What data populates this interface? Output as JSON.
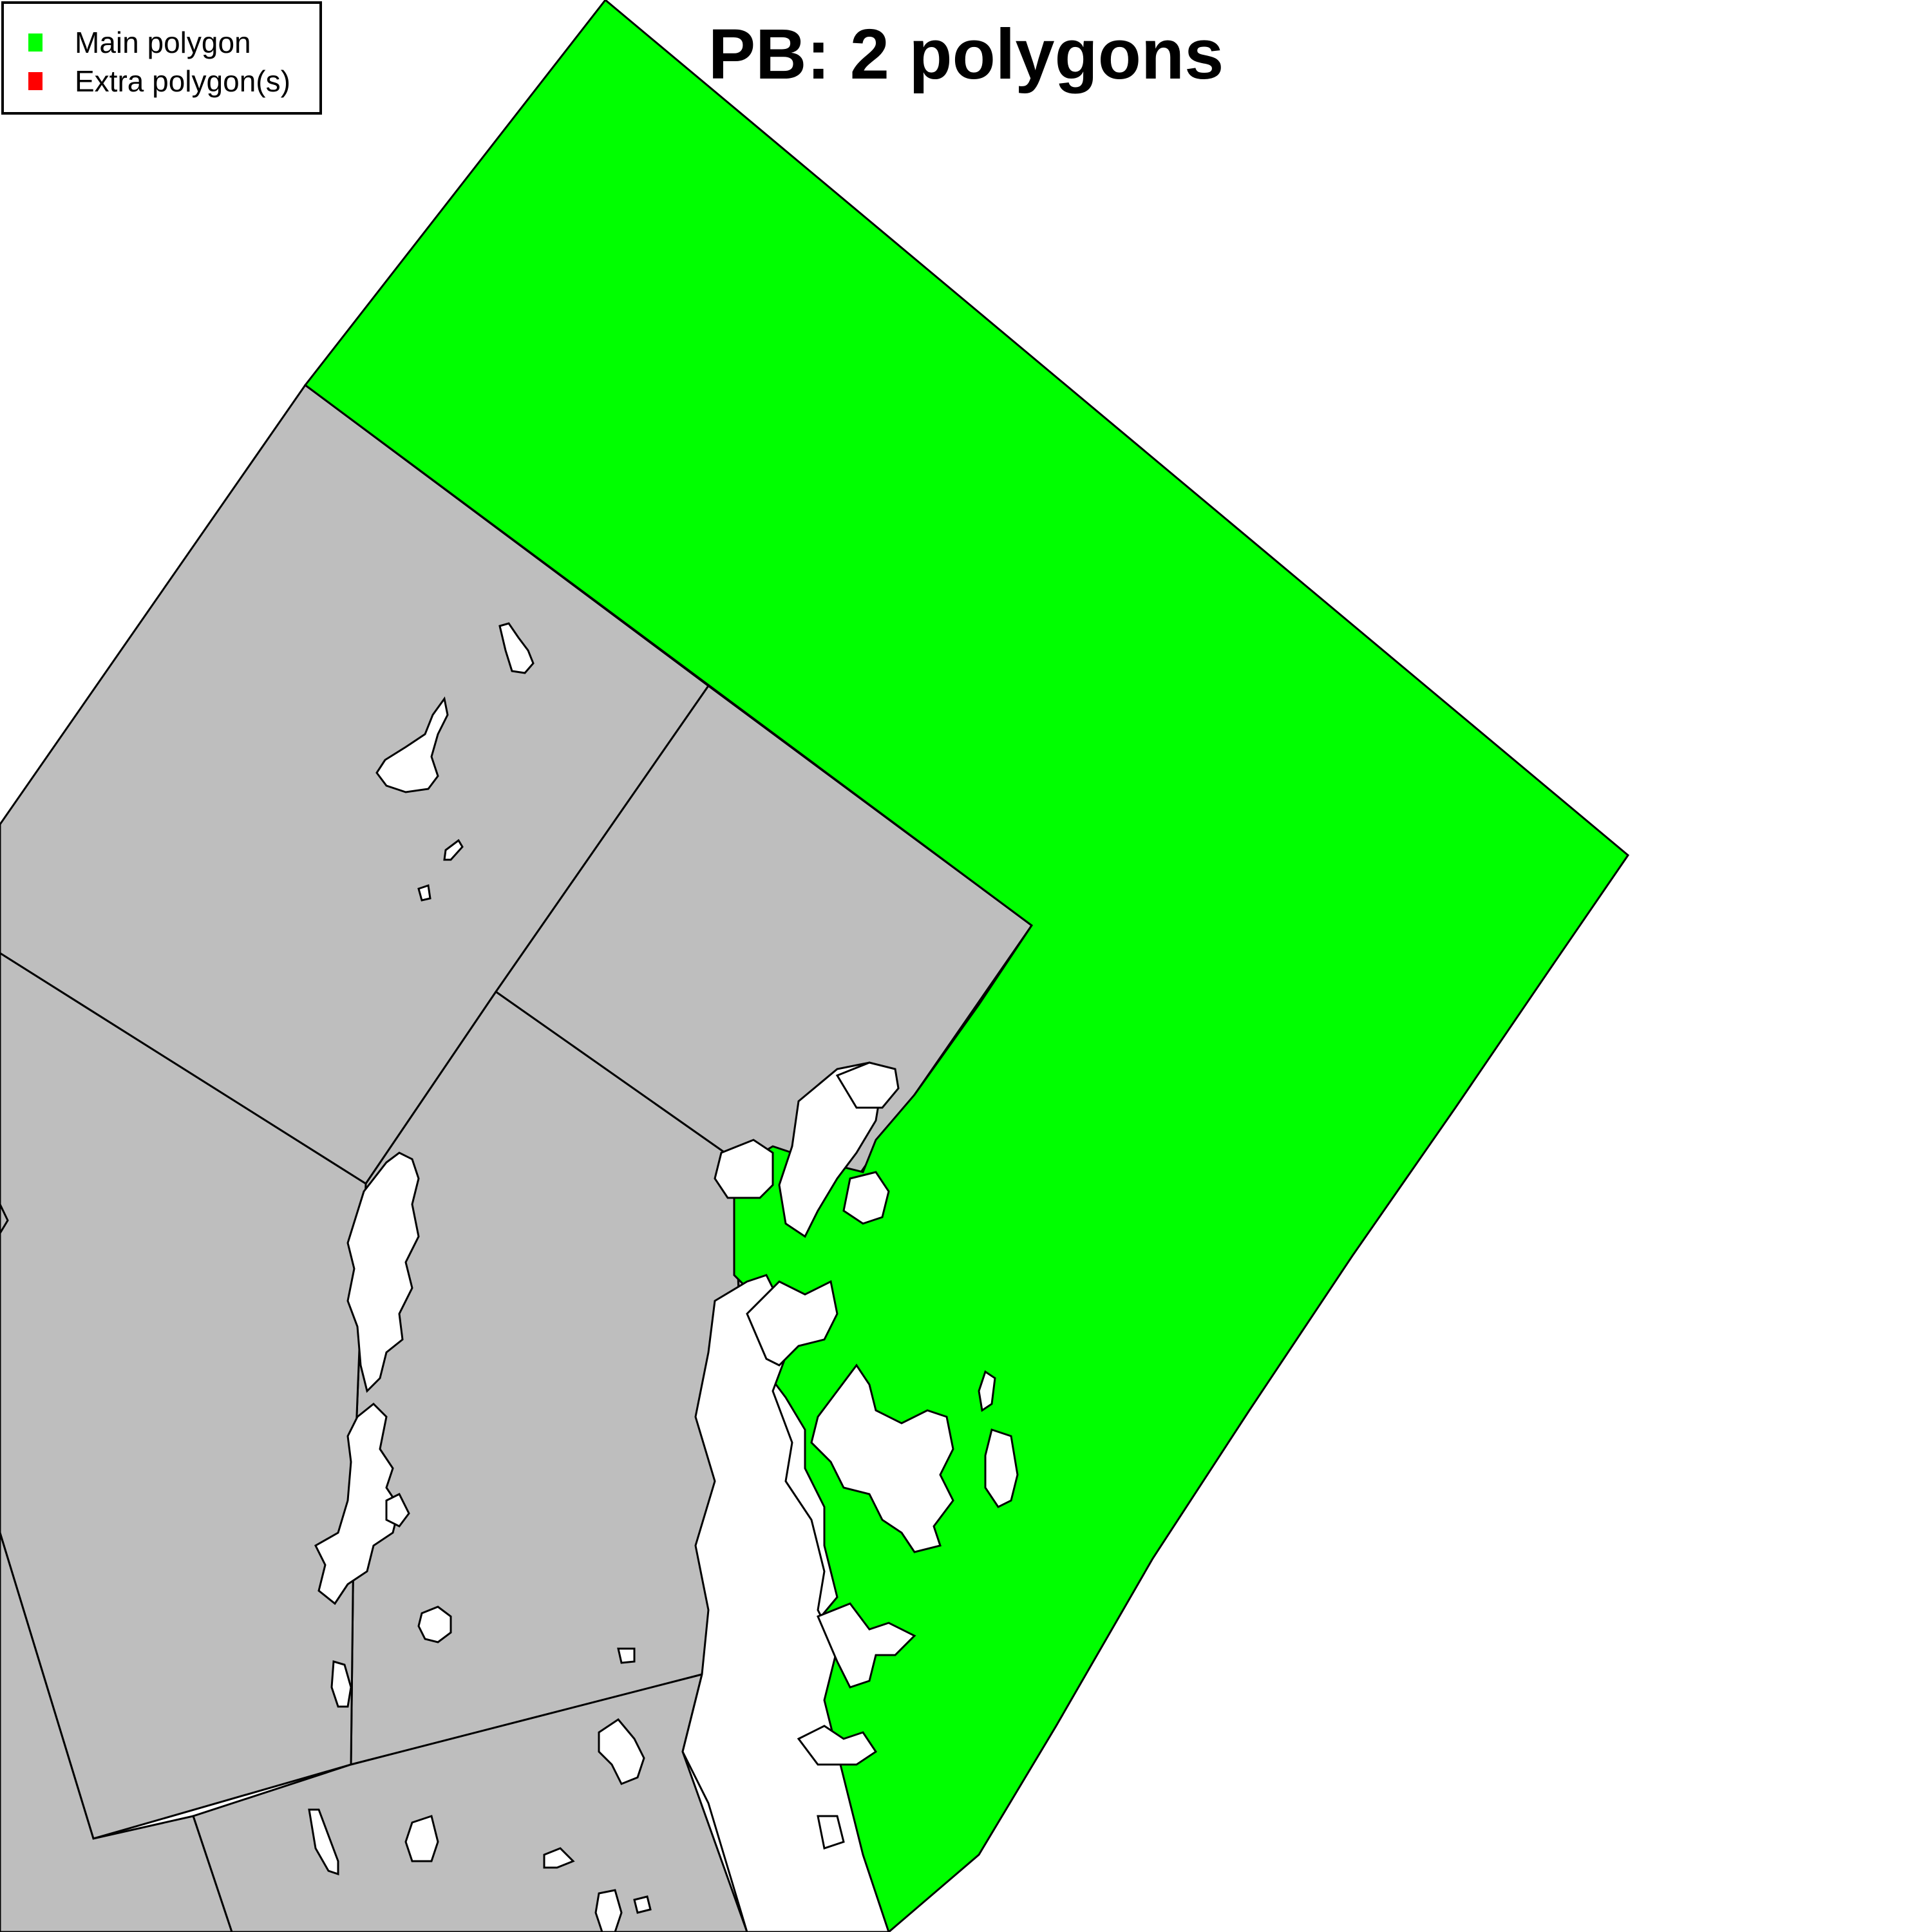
{
  "title": "PB: 2 polygons",
  "legend": {
    "items": [
      {
        "label": "Main polygon",
        "color": "#00ff00"
      },
      {
        "label": "Extra polygon(s)",
        "color": "#ff0000"
      }
    ]
  },
  "colors": {
    "main_polygon": "#00ff00",
    "neighbor_region": "#bebebe",
    "land_gap": "#ffffff",
    "outline": "#000000"
  },
  "icons": {
    "main-polygon-swatch": "green-square",
    "extra-polygon-swatch": "red-square"
  }
}
